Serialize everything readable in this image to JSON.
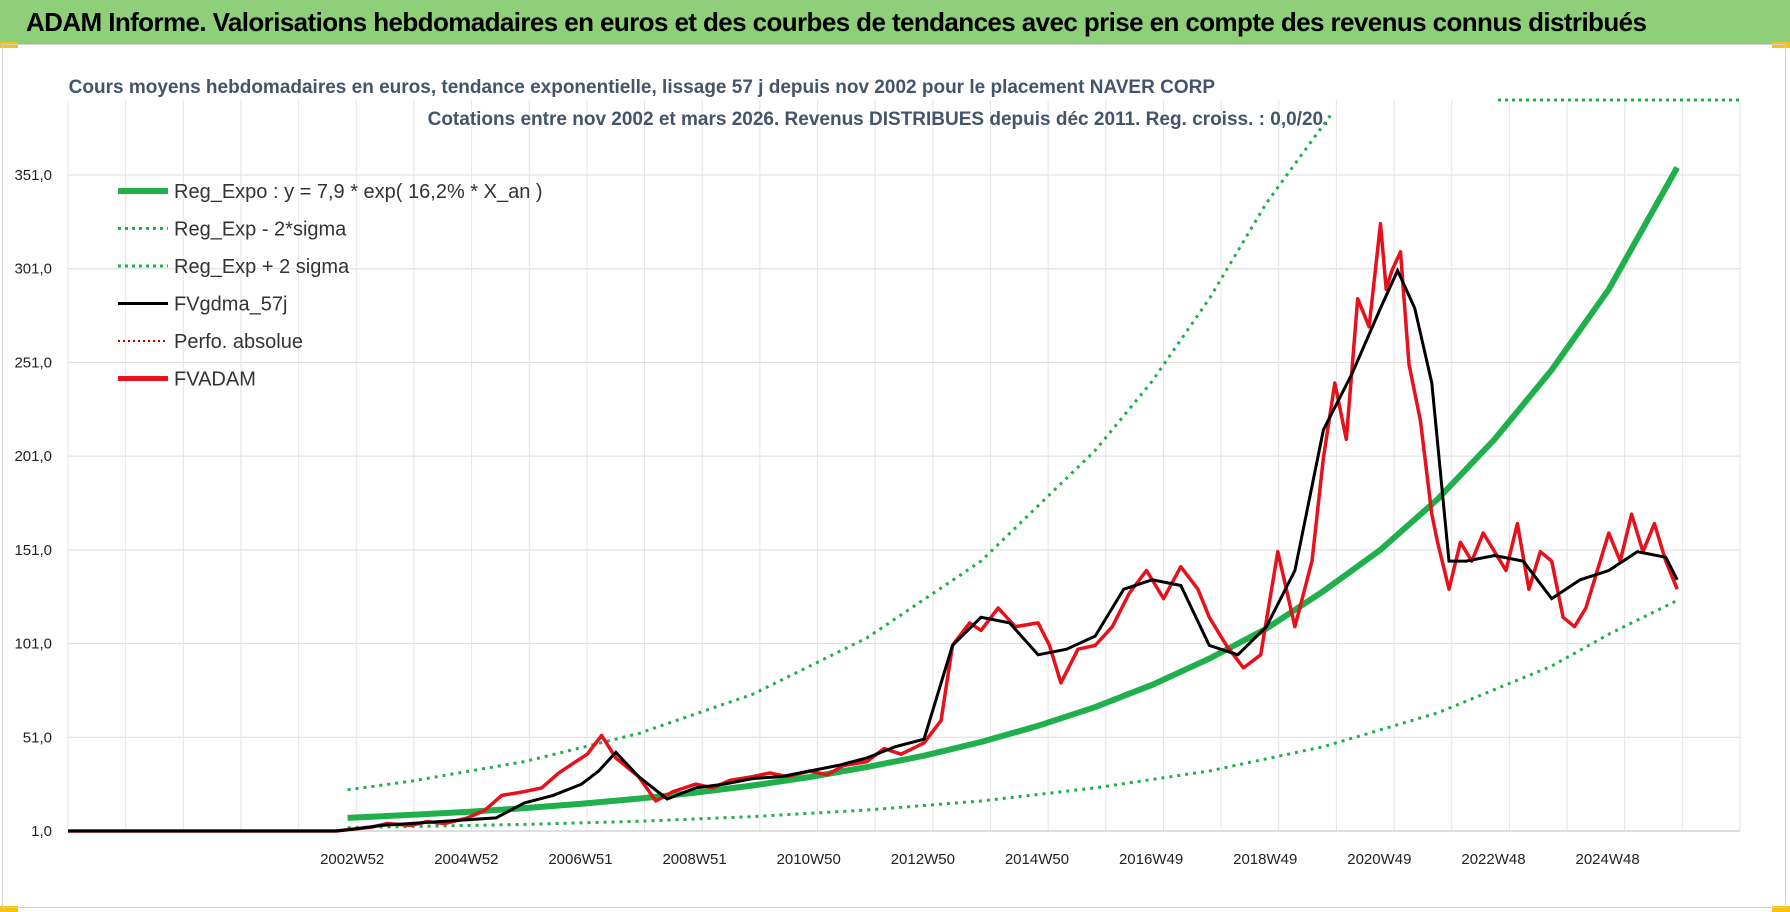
{
  "header": {
    "title": "ADAM Informe. Valorisations hebdomadaires en euros et des courbes de tendances avec prise en compte des revenus connus distribués"
  },
  "colors": {
    "header_bg": "#8fcf7a",
    "trend": "#1fb04c",
    "band": "#1fb04c",
    "smoothed": "#000000",
    "fvadam": "#e8101a",
    "perfo": "#c00000",
    "accent_corner": "#f2c418"
  },
  "chart_data": {
    "type": "line",
    "title_line1": "Cours moyens hebdomadaires en euros, tendance exponentielle, lissage 57 j depuis nov 2002  pour le placement NAVER CORP",
    "title_line2": "Cotations entre nov 2002 et mars 2026. Revenus DISTRIBUES depuis déc 2011. Reg. croiss. : 0,0/20.",
    "y_ticks": [
      "1,0",
      "51,0",
      "101,0",
      "151,0",
      "201,0",
      "251,0",
      "301,0",
      "351,0"
    ],
    "x_ticks": [
      "2002W52",
      "2004W52",
      "2006W51",
      "2008W51",
      "2010W50",
      "2012W50",
      "2014W50",
      "2016W49",
      "2018W49",
      "2020W49",
      "2022W48",
      "2024W48"
    ],
    "ylim": [
      1,
      391
    ],
    "xlim": [
      1998.0,
      2027.3
    ],
    "grid": true,
    "legend_position": "top-left",
    "legend": [
      {
        "label": "Reg_Expo : y = 7,9 * exp( 16,2% *  X_an )",
        "style": "trend"
      },
      {
        "label": "Reg_Exp - 2*sigma",
        "style": "band"
      },
      {
        "label": "Reg_Exp + 2 sigma",
        "style": "band"
      },
      {
        "label": "FVgdma_57j",
        "style": "smoothed"
      },
      {
        "label": "Perfo. absolue",
        "style": "perfo"
      },
      {
        "label": "FVADAM",
        "style": "fvadam"
      }
    ],
    "series": [
      {
        "name": "Reg_Expo : y = 7,9 * exp( 16,2% *  X_an )",
        "key": "trend",
        "x": [
          2002.9,
          2004,
          2005,
          2006,
          2007,
          2008,
          2009,
          2010,
          2011,
          2012,
          2013,
          2014,
          2015,
          2016,
          2017,
          2018,
          2019,
          2020,
          2021,
          2022,
          2023,
          2024,
          2025,
          2026.2
        ],
        "values": [
          8,
          9.6,
          11.2,
          13.2,
          15.5,
          18.3,
          21.5,
          25.3,
          29.8,
          35.1,
          41.2,
          48.5,
          57.1,
          67.1,
          79,
          93,
          109,
          129,
          151,
          178,
          210,
          247,
          290,
          355
        ]
      },
      {
        "name": "Reg_Exp - 2*sigma",
        "key": "lower",
        "x": [
          2002.9,
          2004,
          2006,
          2008,
          2010,
          2012,
          2014,
          2016,
          2018,
          2020,
          2022,
          2024,
          2025,
          2026.2
        ],
        "values": [
          2.8,
          3.4,
          4.5,
          6.2,
          8.7,
          12.2,
          17,
          24,
          33,
          46,
          64,
          89,
          106,
          124
        ]
      },
      {
        "name": "Reg_Exp + 2 sigma",
        "key": "upper",
        "x": [
          2002.9,
          2004,
          2006,
          2008,
          2010,
          2012,
          2014,
          2016,
          2017,
          2018,
          2019,
          2020.15
        ],
        "values": [
          23,
          27.5,
          38,
          53,
          74,
          104,
          145,
          204,
          241,
          285,
          336,
          384
        ]
      },
      {
        "name": "FVgdma_57j",
        "key": "smoothed",
        "x": [
          1998.0,
          2002.7,
          2003.0,
          2003.5,
          2004.0,
          2004.5,
          2005.0,
          2005.5,
          2006.0,
          2006.5,
          2007.0,
          2007.3,
          2007.6,
          2008.0,
          2008.5,
          2009.0,
          2009.5,
          2010.0,
          2010.5,
          2011.0,
          2011.5,
          2012.0,
          2012.5,
          2013.0,
          2013.5,
          2014.0,
          2014.5,
          2015.0,
          2015.5,
          2016.0,
          2016.5,
          2017.0,
          2017.5,
          2018.0,
          2018.5,
          2019.0,
          2019.5,
          2020.0,
          2020.5,
          2021.0,
          2021.3,
          2021.6,
          2021.9,
          2022.2,
          2022.5,
          2023.0,
          2023.5,
          2024.0,
          2024.5,
          2025.0,
          2025.5,
          2026.0,
          2026.2
        ],
        "values": [
          1,
          1,
          2,
          4,
          5,
          6,
          7,
          8,
          16,
          20,
          26,
          33,
          43,
          30,
          18,
          24,
          26,
          29,
          30,
          33,
          36,
          40,
          46,
          50,
          100,
          115,
          112,
          95,
          98,
          105,
          130,
          135,
          132,
          100,
          95,
          110,
          140,
          215,
          245,
          280,
          300,
          280,
          240,
          145,
          145,
          148,
          145,
          125,
          135,
          140,
          150,
          147,
          135
        ]
      },
      {
        "name": "FVADAM",
        "key": "fvadam",
        "x": [
          1998.0,
          2002.7,
          2003.0,
          2003.3,
          2003.6,
          2004.0,
          2004.3,
          2004.6,
          2005.0,
          2005.3,
          2005.6,
          2006.0,
          2006.3,
          2006.6,
          2006.9,
          2007.1,
          2007.35,
          2007.6,
          2008.0,
          2008.3,
          2008.6,
          2009.0,
          2009.3,
          2009.6,
          2010.0,
          2010.3,
          2010.6,
          2011.0,
          2011.3,
          2011.6,
          2012.0,
          2012.3,
          2012.6,
          2013.0,
          2013.3,
          2013.5,
          2013.8,
          2014.0,
          2014.3,
          2014.6,
          2015.0,
          2015.2,
          2015.4,
          2015.7,
          2016.0,
          2016.3,
          2016.6,
          2016.9,
          2017.2,
          2017.5,
          2017.8,
          2018.0,
          2018.3,
          2018.6,
          2018.9,
          2019.2,
          2019.5,
          2019.8,
          2020.0,
          2020.2,
          2020.4,
          2020.6,
          2020.8,
          2021.0,
          2021.1,
          2021.2,
          2021.35,
          2021.5,
          2021.7,
          2021.9,
          2022.0,
          2022.2,
          2022.4,
          2022.6,
          2022.8,
          2023.0,
          2023.2,
          2023.4,
          2023.6,
          2023.8,
          2024.0,
          2024.2,
          2024.4,
          2024.6,
          2024.8,
          2025.0,
          2025.2,
          2025.4,
          2025.6,
          2025.8,
          2026.0,
          2026.2
        ],
        "values": [
          1,
          1,
          2,
          3,
          5,
          4,
          6,
          5,
          8,
          12,
          20,
          22,
          24,
          32,
          38,
          42,
          52,
          40,
          30,
          17,
          22,
          26,
          24,
          28,
          30,
          32,
          30,
          33,
          31,
          36,
          38,
          45,
          42,
          48,
          60,
          100,
          112,
          108,
          120,
          110,
          112,
          100,
          80,
          98,
          100,
          110,
          128,
          140,
          125,
          142,
          130,
          115,
          100,
          88,
          95,
          150,
          110,
          145,
          200,
          240,
          210,
          285,
          270,
          325,
          290,
          300,
          310,
          250,
          220,
          170,
          155,
          130,
          155,
          145,
          160,
          150,
          140,
          165,
          130,
          150,
          145,
          115,
          110,
          120,
          140,
          160,
          145,
          170,
          150,
          165,
          145,
          130
        ]
      }
    ]
  }
}
